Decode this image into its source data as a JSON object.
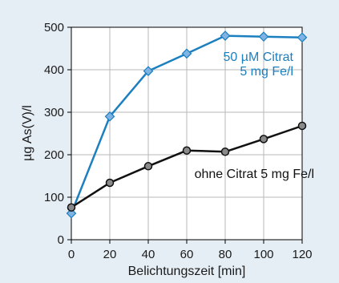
{
  "chart_data": {
    "type": "line",
    "title": "",
    "xlabel": "Belichtungszeit [min]",
    "ylabel": "µg As(V)/l",
    "xlim": [
      0,
      120
    ],
    "ylim": [
      0,
      500
    ],
    "xticks": [
      "0",
      "20",
      "40",
      "60",
      "80",
      "100",
      "120"
    ],
    "yticks": [
      "0",
      "100",
      "200",
      "300",
      "400",
      "500"
    ],
    "grid": true,
    "series": [
      {
        "name": "50 µM Citrat 5 mg Fe/l",
        "label_lines": [
          "50 µM Citrat",
          "5 mg Fe/l"
        ],
        "color": "#1b7fc0",
        "marker_fill": "#7fb3e3",
        "marker": "diamond",
        "x": [
          0,
          20,
          40,
          60,
          80,
          100,
          120
        ],
        "y": [
          62,
          290,
          397,
          438,
          480,
          478,
          476
        ]
      },
      {
        "name": "ohne Citrat 5 mg Fe/l",
        "label_lines": [
          "ohne Citrat 5 mg Fe/l"
        ],
        "color": "#111111",
        "marker_fill": "#8a8a8a",
        "marker": "circle",
        "x": [
          0,
          20,
          40,
          60,
          80,
          100,
          120
        ],
        "y": [
          76,
          134,
          173,
          210,
          207,
          237,
          268
        ]
      }
    ]
  },
  "colors": {
    "background": "#e6eef5",
    "plot_area": "#ffffff",
    "grid": "#b8b8b8",
    "axis": "#000000"
  }
}
